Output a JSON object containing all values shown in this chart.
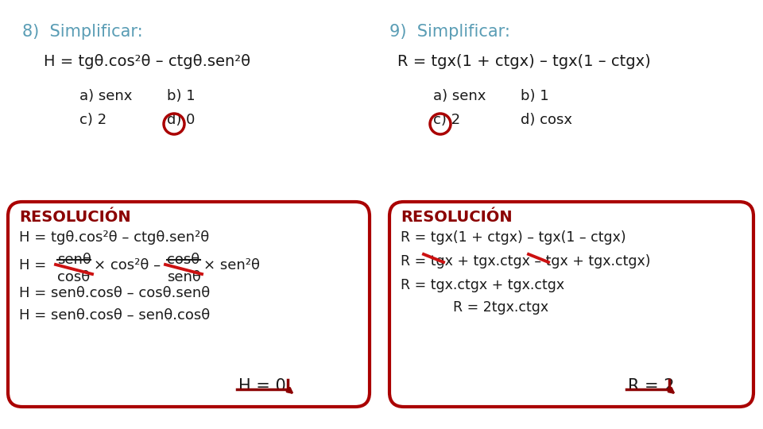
{
  "bg_color": "#ffffff",
  "dark_red": "#8B0000",
  "border_red": "#aa0000",
  "teal": "#5a9db5",
  "text_color": "#1a1a1a",
  "title8": "8)  Simplificar:",
  "title9": "9)  Simplificar:",
  "problem8": "H = tgθ.cos²θ – ctgθ.sen²θ",
  "problem9": "R = tgx(1 + ctgx) – tgx(1 – ctgx)",
  "ans8_a": "a) senx",
  "ans8_b": "b) 1",
  "ans8_c": "c) 2",
  "ans8_d": "d) 0",
  "ans9_a": "a) senx",
  "ans9_b": "b) 1",
  "ans9_c": "c) 2",
  "ans9_d": "d) cosx",
  "resolucion": "RESOLUCIÓN",
  "sol8_line1": "H = tgθ.cos²θ – ctgθ.sen²θ",
  "sol8_num1": "senθ",
  "sol8_den1": "cosθ",
  "sol8_cos2": "× cos²θ –",
  "sol8_num2": "cosθ",
  "sol8_den2": "senθ",
  "sol8_sen2": "× sen²θ",
  "sol8_line3": "H = senθ.cosθ – cosθ.senθ",
  "sol8_line4": "H = senθ.cosθ – senθ.cosθ",
  "sol8_ans": "H = 0",
  "sol9_line1": "R = tgx(1 + ctgx) – tgx(1 – ctgx)",
  "sol9_line2": "R = tgx + tgx.ctgx – tgx + tgx.ctgx)",
  "sol9_line3": "R = tgx.ctgx + tgx.ctgx",
  "sol9_line4": "R = 2tgx.ctgx",
  "sol9_ans": "R = 2"
}
